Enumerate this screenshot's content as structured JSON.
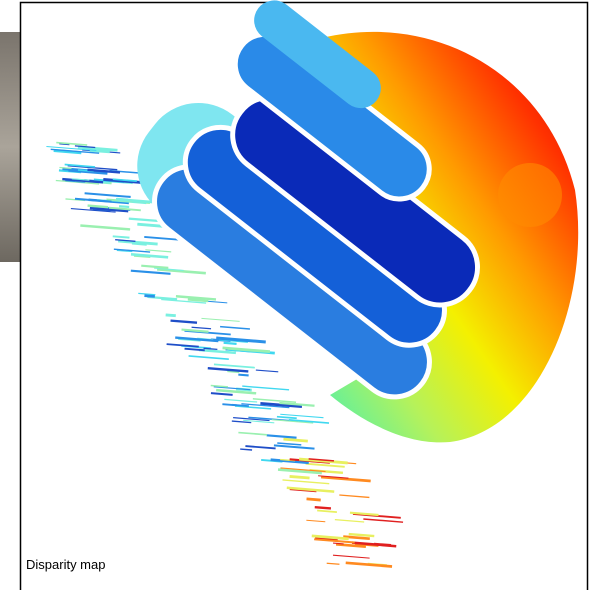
{
  "caption": "Disparity map"
}
